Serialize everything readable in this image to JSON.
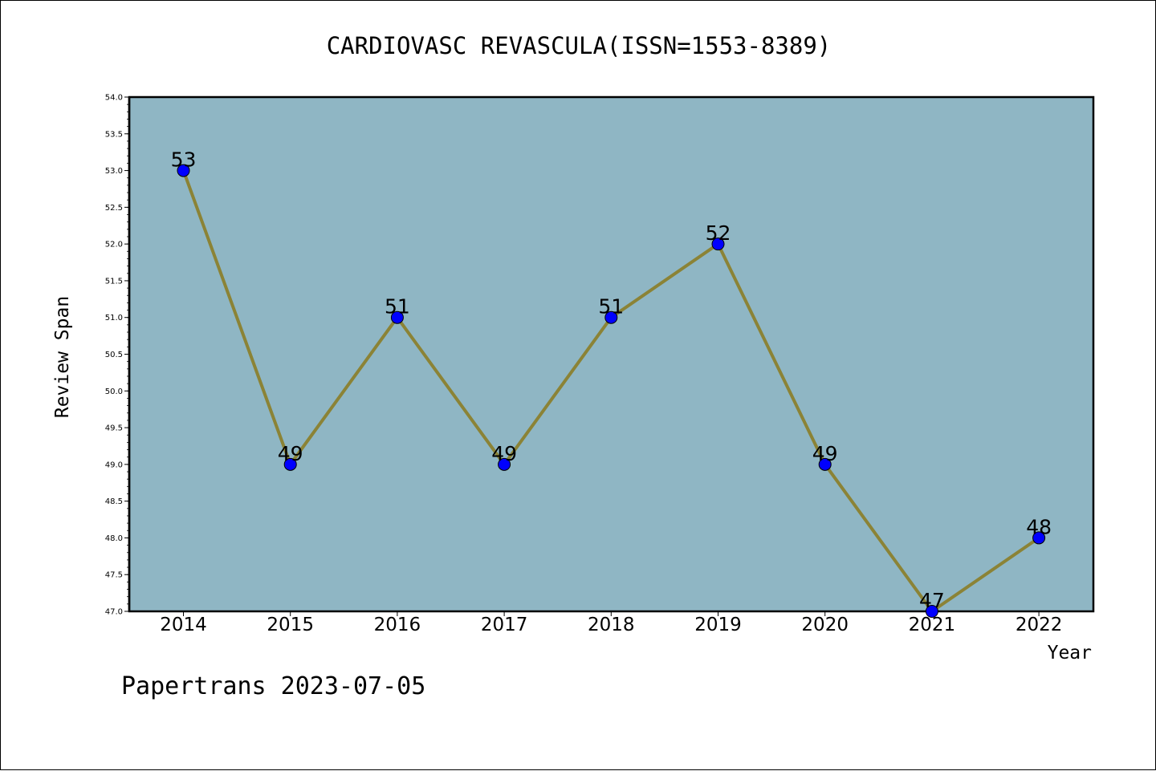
{
  "chart_data": {
    "type": "line",
    "title": "CARDIOVASC REVASCULA(ISSN=1553-8389)",
    "xlabel": "Year",
    "ylabel": "Review Span",
    "x": [
      "2014",
      "2015",
      "2016",
      "2017",
      "2018",
      "2019",
      "2020",
      "2021",
      "2022"
    ],
    "series": [
      {
        "values": [
          53,
          49,
          51,
          49,
          51,
          52,
          49,
          47,
          48
        ],
        "data_labels": [
          "53",
          "49",
          "51",
          "49",
          "51",
          "52",
          "49",
          "47",
          "48"
        ],
        "line_color": "#8b8336",
        "marker_color": "#0000ff"
      }
    ],
    "ylim": [
      47.0,
      54.0
    ],
    "y_ticks": [
      "47.0",
      "47.5",
      "48.0",
      "48.5",
      "49.0",
      "49.5",
      "50.0",
      "50.5",
      "51.0",
      "51.5",
      "52.0",
      "52.5",
      "53.0",
      "53.5",
      "54.0"
    ],
    "plot_background": "#8fb6c4",
    "grid": false
  },
  "footer": "Papertrans 2023-07-05"
}
